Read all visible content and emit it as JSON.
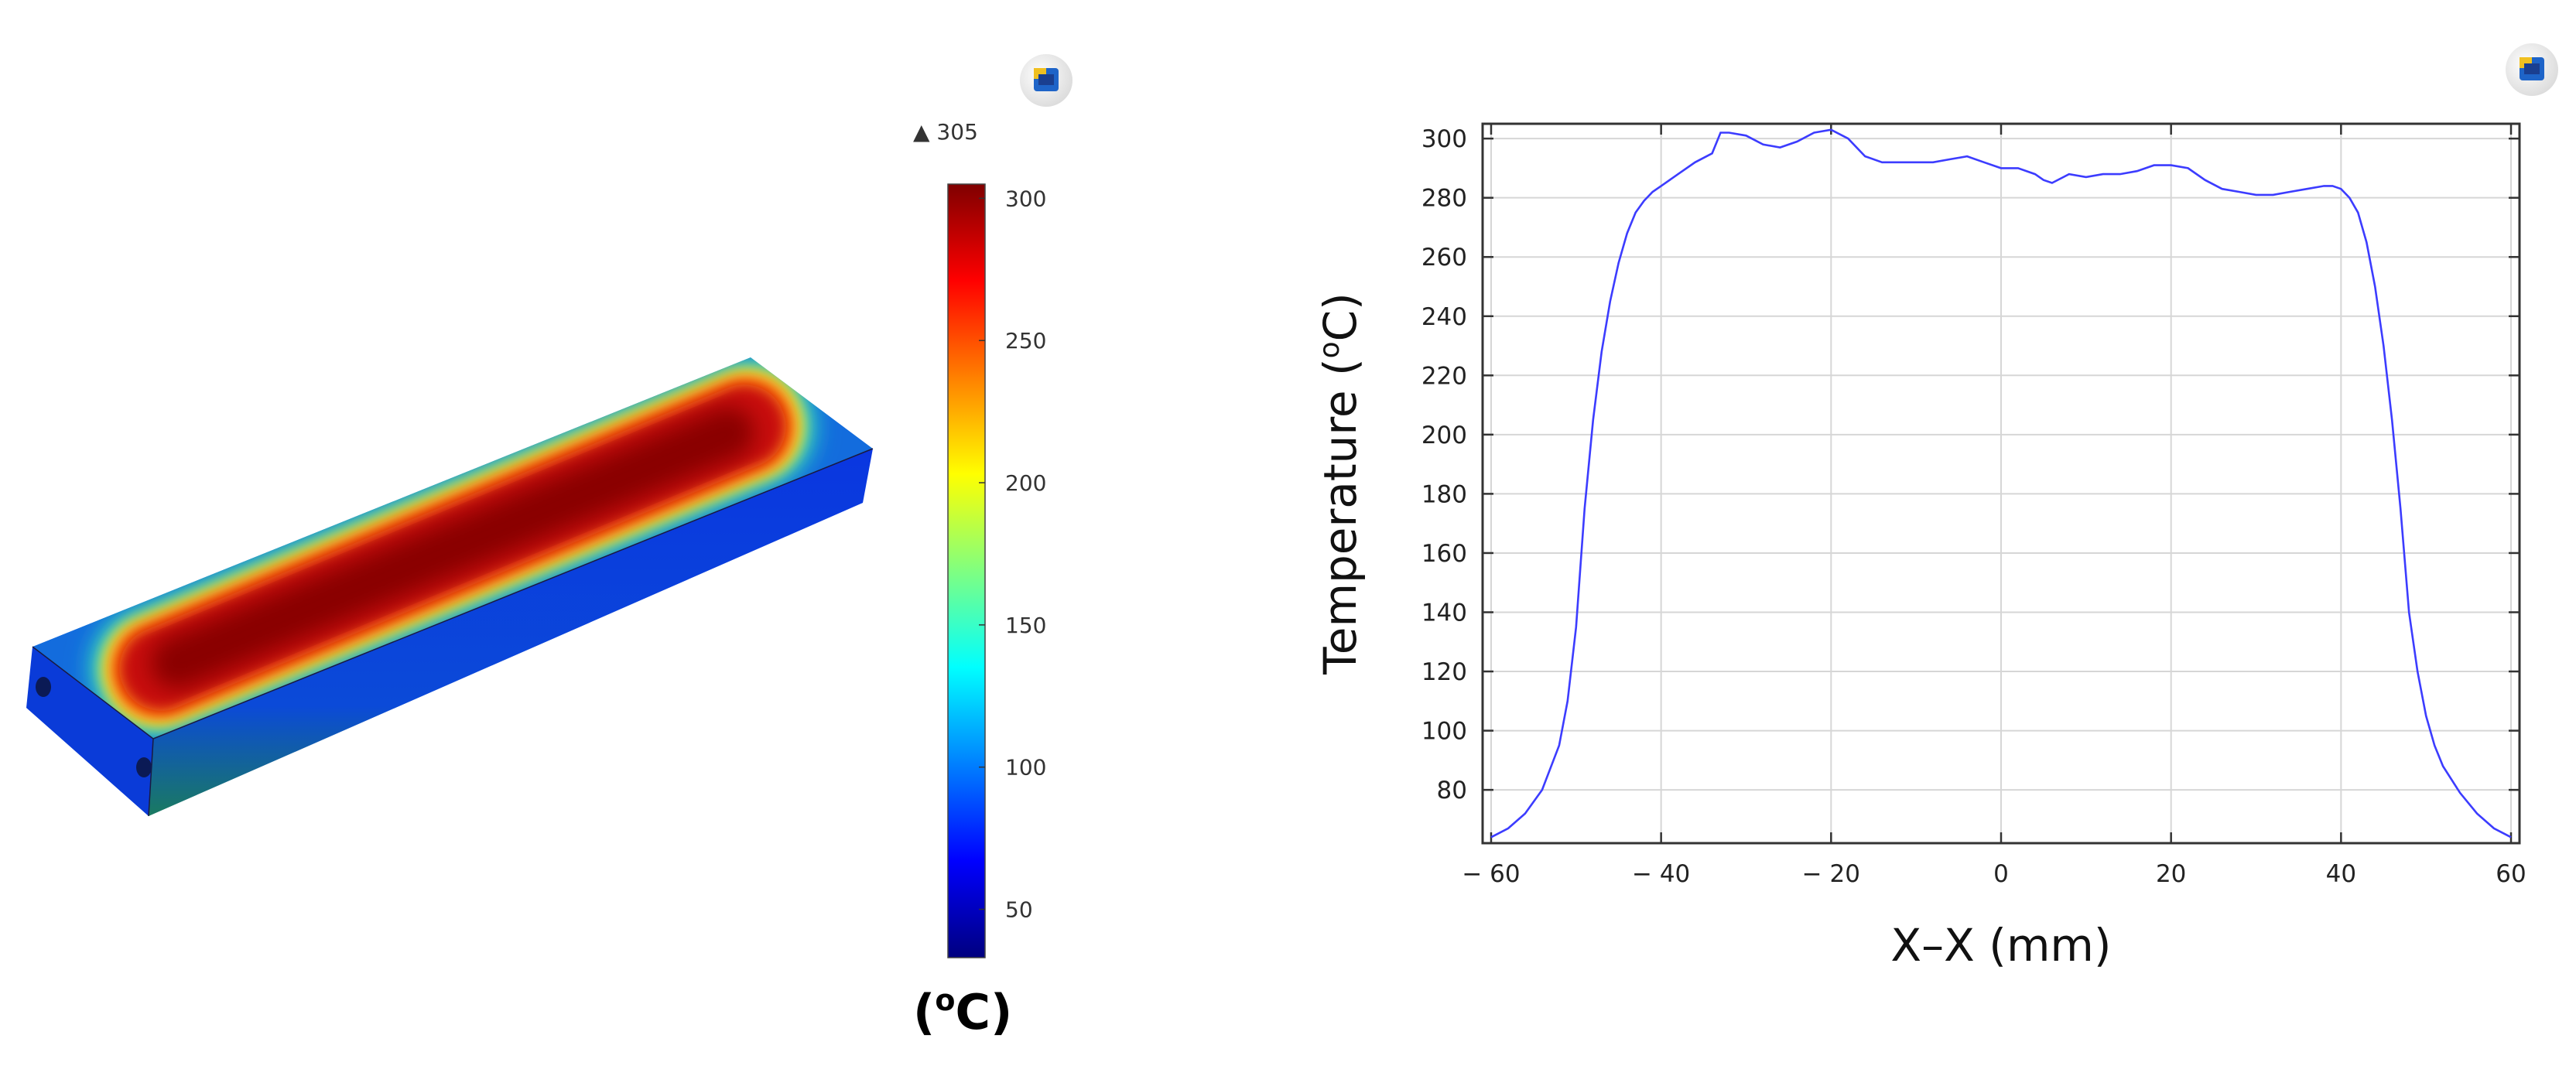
{
  "left_panel": {
    "colorbar": {
      "max_marker": "▲ 305",
      "ticks": [
        "300",
        "250",
        "200",
        "150",
        "100",
        "50"
      ],
      "tick_values": [
        300,
        250,
        200,
        150,
        100,
        50
      ],
      "range": [
        33,
        305
      ],
      "unit_base": "(",
      "unit_super": "o",
      "unit_rest": "C)",
      "colormap": [
        "#00007f",
        "#0000ff",
        "#0080ff",
        "#00ffff",
        "#80ff80",
        "#ffff00",
        "#ff8000",
        "#ff0000",
        "#7f0000"
      ]
    },
    "icon": "comsol-logo-icon"
  },
  "chart_data": {
    "type": "line",
    "xlabel": "X–X (mm)",
    "ylabel_base": "Temperature (",
    "ylabel_super": "o",
    "ylabel_rest": "C)",
    "xlim": [
      -61,
      61
    ],
    "ylim": [
      62,
      305
    ],
    "x_ticks": [
      -60,
      -40,
      -20,
      0,
      20,
      40,
      60
    ],
    "x_tick_labels": [
      "− 60",
      "− 40",
      "− 20",
      "0",
      "20",
      "40",
      "60"
    ],
    "y_ticks": [
      80,
      100,
      120,
      140,
      160,
      180,
      200,
      220,
      240,
      260,
      280,
      300
    ],
    "y_tick_labels": [
      "80",
      "100",
      "120",
      "140",
      "160",
      "180",
      "200",
      "220",
      "240",
      "260",
      "280",
      "300"
    ],
    "grid": true,
    "line_color": "#3c3cff",
    "series": [
      {
        "x": [
          -60,
          -58,
          -56,
          -54,
          -52,
          -51,
          -50,
          -49,
          -48,
          -47,
          -46,
          -45,
          -44,
          -43,
          -42,
          -41,
          -40,
          -38,
          -36,
          -34,
          -33,
          -32,
          -30,
          -28,
          -26,
          -24,
          -22,
          -20,
          -18,
          -16,
          -14,
          -12,
          -10,
          -8,
          -6,
          -4,
          -2,
          0,
          2,
          4,
          5,
          6,
          8,
          10,
          12,
          14,
          16,
          18,
          20,
          22,
          24,
          26,
          28,
          30,
          32,
          34,
          36,
          38,
          39,
          40,
          41,
          42,
          43,
          44,
          45,
          46,
          47,
          48,
          49,
          50,
          51,
          52,
          54,
          56,
          58,
          60
        ],
        "y": [
          64,
          67,
          72,
          80,
          95,
          110,
          135,
          175,
          205,
          228,
          245,
          258,
          268,
          275,
          279,
          282,
          284,
          288,
          292,
          295,
          302,
          302,
          301,
          298,
          297,
          299,
          302,
          303,
          300,
          294,
          292,
          292,
          292,
          292,
          293,
          294,
          292,
          290,
          290,
          288,
          286,
          285,
          288,
          287,
          288,
          288,
          289,
          291,
          291,
          290,
          286,
          283,
          282,
          281,
          281,
          282,
          283,
          284,
          284,
          283,
          280,
          275,
          265,
          250,
          230,
          205,
          175,
          140,
          120,
          105,
          95,
          88,
          79,
          72,
          67,
          64
        ]
      }
    ],
    "icon": "comsol-logo-icon"
  }
}
